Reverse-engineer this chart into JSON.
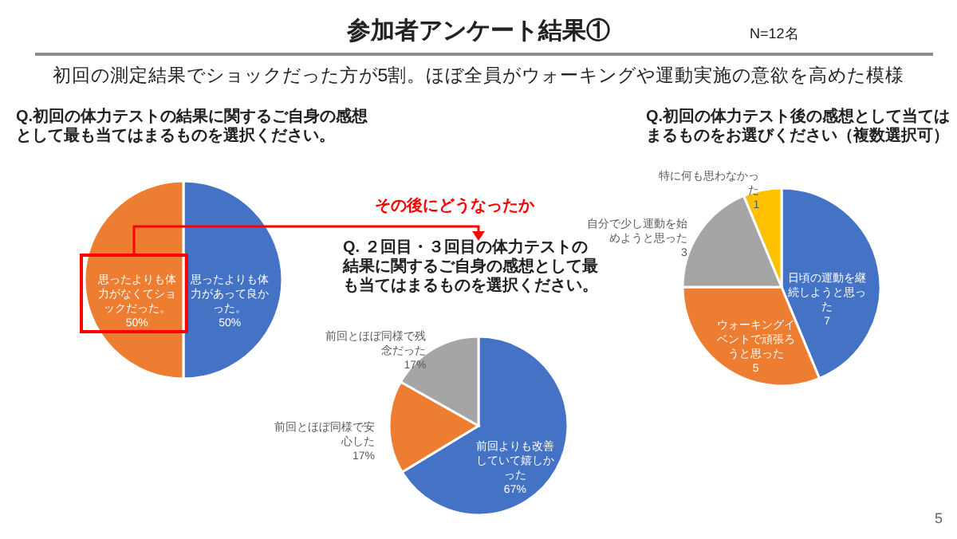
{
  "chart_data": [
    {
      "type": "pie",
      "title": "Q.初回の体力テストの結果に関するご自身の感想として最も当てはまるものを選択ください。",
      "annotations": [
        "参加者アンケート結果①",
        "N=12名",
        "初回の測定結果でショックだった方が5割。ほぼ全員がウォーキングや運動実施の意欲を高めた模様",
        "その後にどうなったか",
        "5"
      ],
      "categories": [
        "思ったよりも体力があって良かった。",
        "思ったよりも体力がなくてショックだった。"
      ],
      "values": [
        50,
        50
      ],
      "value_labels": [
        "50%",
        "50%"
      ],
      "colors": [
        "#4472c4",
        "#ed7d31"
      ]
    },
    {
      "type": "pie",
      "title": "Q. ２回目・３回目の体力テストの結果に関するご自身の感想として最も当てはまるものを選択ください。",
      "categories": [
        "前回よりも改善していて嬉しかった",
        "前回とほぼ同様で安心した",
        "前回とほぼ同様で残念だった"
      ],
      "values": [
        67,
        17,
        17
      ],
      "value_labels": [
        "67%",
        "17%",
        "17%"
      ],
      "colors": [
        "#4472c4",
        "#ed7d31",
        "#a5a5a5"
      ]
    },
    {
      "type": "pie",
      "title": "Q.初回の体力テスト後の感想として当てはまるものをお選びください（複数選択可）",
      "categories": [
        "日頃の運動を継続しようと思った",
        "ウォーキングイベントで頑張ろうと思った",
        "自分で少し運動を始めようと思った",
        "特に何も思わなかった"
      ],
      "values": [
        7,
        5,
        3,
        1
      ],
      "data_labels": true,
      "colors": [
        "#4472c4",
        "#ed7d31",
        "#a5a5a5",
        "#ffc000"
      ]
    }
  ]
}
